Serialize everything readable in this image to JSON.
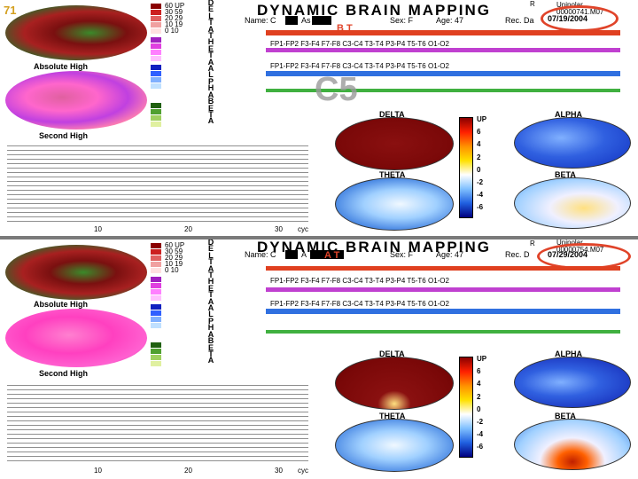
{
  "slide_number": "71",
  "watermark": "C5",
  "panels": [
    {
      "header_title": "DYNAMIC   BRAIN   MAPPING",
      "superscript": "R",
      "name_label": "Name: C",
      "name_mid": "As",
      "initials": "B T",
      "sex": "Sex: F",
      "age": "Age: 47",
      "rec_date_label": "Rec. Da",
      "rec_date": "07/19/2004",
      "program": "Unipolar",
      "file": "00000741.M07",
      "abs_high_label": "Absolute High",
      "second_high_label": "Second High",
      "band_letters": [
        "D",
        "E",
        "L",
        "T",
        "A",
        "T",
        "H",
        "E",
        "T",
        "A",
        "A",
        "L",
        "P",
        "H",
        "A",
        "B",
        "E",
        "T",
        "A"
      ],
      "legend_values": [
        "60 UP",
        "30 59",
        "20 29",
        "10 19",
        "0 10"
      ],
      "channels_top": "FP1-FP2  F3-F4   F7-F8   C3-C4   T3-T4   P3-P4   T5-T6   O1-O2",
      "delta_label": "DELTA",
      "alpha_label": "ALPHA",
      "theta_label": "THETA",
      "beta_label": "BETA",
      "scale_labels": [
        "UP",
        "6",
        "4",
        "2",
        "0",
        "-2",
        "-4",
        "-6"
      ],
      "axis_ticks": [
        "10",
        "20",
        "30"
      ],
      "axis_unit": "cyc"
    },
    {
      "header_title": "DYNAMIC   BRAIN   MAPPING",
      "superscript": "R",
      "name_label": "Name: C",
      "name_mid": "A",
      "initials": "A T",
      "sex": "Sex: F",
      "age": "Age: 47",
      "rec_date_label": "Rec. D",
      "rec_date": "07/29/2004",
      "program": "Unipolar",
      "file": "00000754.M07",
      "abs_high_label": "Absolute High",
      "second_high_label": "Second High",
      "band_letters": [
        "D",
        "E",
        "L",
        "T",
        "A",
        "T",
        "H",
        "E",
        "T",
        "A",
        "A",
        "L",
        "P",
        "H",
        "A",
        "B",
        "E",
        "T",
        "A"
      ],
      "legend_values": [
        "60 UP",
        "30 59",
        "20 29",
        "10 19",
        "0 10"
      ],
      "channels_top": "FP1-FP2  F3-F4   F7-F8   C3-C4   T3-T4   P3-P4   T5-T6   O1-O2",
      "delta_label": "DELTA",
      "alpha_label": "ALPHA",
      "theta_label": "THETA",
      "beta_label": "BETA",
      "scale_labels": [
        "UP",
        "6",
        "4",
        "2",
        "0",
        "-2",
        "-4",
        "-6"
      ],
      "axis_ticks": [
        "10",
        "20",
        "30"
      ],
      "axis_unit": "cyc"
    }
  ],
  "colors": {
    "accent_red": "#e0442a",
    "separator": "#7a7a7a"
  }
}
